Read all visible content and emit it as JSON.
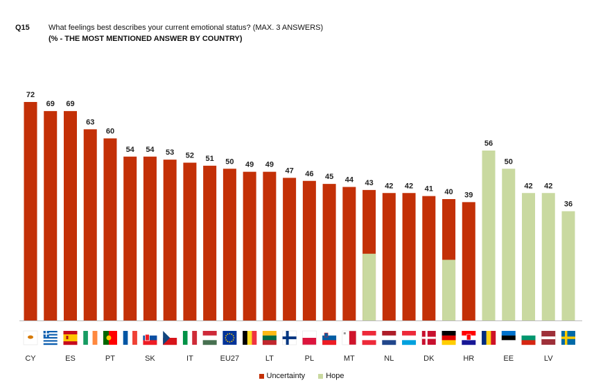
{
  "header": {
    "code": "Q15",
    "question": "What feelings best describes your current emotional status? (MAX. 3 ANSWERS)",
    "subtitle": "(% - THE MOST MENTIONED ANSWER BY COUNTRY)"
  },
  "colors": {
    "Uncertainty": "#c33007",
    "Hope": "#c9d9a0"
  },
  "chart_data": {
    "type": "bar",
    "title": "What feelings best describes your current emotional status? (MAX. 3 ANSWERS)",
    "subtitle": "(% - THE MOST MENTIONED ANSWER BY COUNTRY)",
    "categories": [
      "CY",
      "EL",
      "ES",
      "IE",
      "PT",
      "FR",
      "SK",
      "CZ",
      "IT",
      "HU",
      "EU27",
      "BE",
      "LT",
      "FI",
      "PL",
      "SI",
      "MT",
      "AT",
      "NL",
      "CY2",
      "DK",
      "DE",
      "HR",
      "RO",
      "EE",
      "BG",
      "LV",
      "SE"
    ],
    "tick_labels": [
      "CY",
      "",
      "ES",
      "",
      "PT",
      "",
      "SK",
      "",
      "IT",
      "",
      "EU27",
      "",
      "LT",
      "",
      "PL",
      "",
      "MT",
      "",
      "NL",
      "",
      "DK",
      "",
      "HR",
      "",
      "EE",
      "",
      "LV",
      ""
    ],
    "values": [
      72,
      69,
      69,
      63,
      60,
      54,
      54,
      53,
      52,
      51,
      50,
      49,
      49,
      47,
      46,
      45,
      44,
      43,
      42,
      42,
      41,
      40,
      39,
      56,
      50,
      42,
      42,
      36
    ],
    "value_labels": [
      "72",
      "69",
      "69",
      "63",
      "60",
      "54",
      "54",
      "53",
      "52",
      "51",
      "50",
      "49",
      "49",
      "47",
      "46",
      "45",
      "44",
      "43",
      "42",
      "42",
      "41",
      "40",
      "39",
      "56",
      "50",
      "42",
      "42",
      "36"
    ],
    "answer": [
      "Uncertainty",
      "Uncertainty",
      "Uncertainty",
      "Uncertainty",
      "Uncertainty",
      "Uncertainty",
      "Uncertainty",
      "Uncertainty",
      "Uncertainty",
      "Uncertainty",
      "Uncertainty",
      "Uncertainty",
      "Uncertainty",
      "Uncertainty",
      "Uncertainty",
      "Uncertainty",
      "Uncertainty",
      "Uncertainty+Hope",
      "Uncertainty",
      "Uncertainty",
      "Uncertainty",
      "Uncertainty+Hope",
      "Uncertainty",
      "Hope",
      "Hope",
      "Hope",
      "Hope",
      "Hope"
    ],
    "hope_share": [
      0,
      0,
      0,
      0,
      0,
      0,
      0,
      0,
      0,
      0,
      0,
      0,
      0,
      0,
      0,
      0,
      0,
      43,
      0,
      0,
      0,
      40,
      0,
      56,
      50,
      42,
      42,
      36
    ],
    "flag_icons": [
      "cyprus-flag-icon",
      "greece-flag-icon",
      "spain-flag-icon",
      "ireland-flag-icon",
      "portugal-flag-icon",
      "france-flag-icon",
      "slovakia-flag-icon",
      "czechia-flag-icon",
      "italy-flag-icon",
      "hungary-flag-icon",
      "eu-flag-icon",
      "belgium-flag-icon",
      "lithuania-flag-icon",
      "finland-flag-icon",
      "poland-flag-icon",
      "slovenia-flag-icon",
      "malta-flag-icon",
      "austria-flag-icon",
      "netherlands-flag-icon",
      "luxembourg-flag-icon",
      "denmark-flag-icon",
      "germany-flag-icon",
      "croatia-flag-icon",
      "romania-flag-icon",
      "estonia-flag-icon",
      "bulgaria-flag-icon",
      "latvia-flag-icon",
      "sweden-flag-icon"
    ],
    "ylim": [
      0,
      72
    ],
    "grid": false,
    "legend": {
      "position": "bottom",
      "entries": [
        "Uncertainty",
        "Hope"
      ]
    }
  }
}
